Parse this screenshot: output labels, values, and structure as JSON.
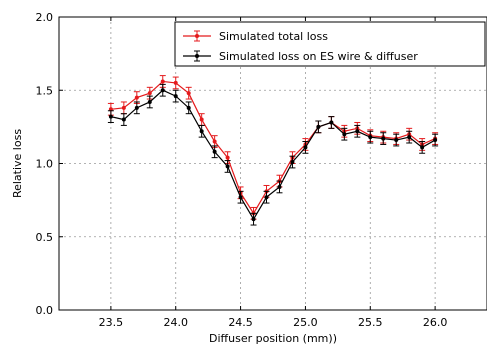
{
  "chart_data": {
    "type": "line",
    "xlabel": "Diffuser position (mm))",
    "ylabel": "Relative loss",
    "xlim": [
      23.1,
      26.4
    ],
    "ylim": [
      0.0,
      2.0
    ],
    "x_ticks": [
      "23.5",
      "24.0",
      "24.5",
      "25.0",
      "25.5",
      "26.0"
    ],
    "y_ticks": [
      "0.0",
      "0.5",
      "1.0",
      "1.5",
      "2.0"
    ],
    "grid": true,
    "legend_position": "top-right",
    "x": [
      23.5,
      23.6,
      23.7,
      23.8,
      23.9,
      24.0,
      24.1,
      24.2,
      24.3,
      24.4,
      24.5,
      24.6,
      24.7,
      24.8,
      24.9,
      25.0,
      25.1,
      25.2,
      25.3,
      25.4,
      25.5,
      25.6,
      25.7,
      25.8,
      25.9,
      26.0
    ],
    "series": [
      {
        "name": "Simulated total loss",
        "color": "#e41a1c",
        "values": [
          1.37,
          1.38,
          1.45,
          1.48,
          1.56,
          1.55,
          1.48,
          1.3,
          1.15,
          1.04,
          0.8,
          0.66,
          0.81,
          0.88,
          1.04,
          1.13,
          1.25,
          1.28,
          1.22,
          1.24,
          1.19,
          1.18,
          1.17,
          1.2,
          1.13,
          1.17
        ],
        "errors": [
          0.04,
          0.04,
          0.04,
          0.04,
          0.04,
          0.04,
          0.04,
          0.04,
          0.04,
          0.04,
          0.04,
          0.04,
          0.04,
          0.04,
          0.04,
          0.04,
          0.04,
          0.04,
          0.04,
          0.04,
          0.04,
          0.04,
          0.04,
          0.04,
          0.04,
          0.04
        ]
      },
      {
        "name": "Simulated loss on ES wire & diffuser",
        "color": "#000000",
        "values": [
          1.32,
          1.3,
          1.38,
          1.42,
          1.5,
          1.46,
          1.38,
          1.22,
          1.08,
          0.98,
          0.77,
          0.62,
          0.77,
          0.84,
          1.01,
          1.11,
          1.25,
          1.28,
          1.2,
          1.22,
          1.18,
          1.17,
          1.16,
          1.18,
          1.11,
          1.16
        ],
        "errors": [
          0.04,
          0.04,
          0.04,
          0.04,
          0.04,
          0.04,
          0.04,
          0.04,
          0.04,
          0.04,
          0.04,
          0.04,
          0.04,
          0.04,
          0.04,
          0.04,
          0.04,
          0.04,
          0.04,
          0.04,
          0.04,
          0.04,
          0.04,
          0.04,
          0.04,
          0.04
        ]
      }
    ]
  }
}
